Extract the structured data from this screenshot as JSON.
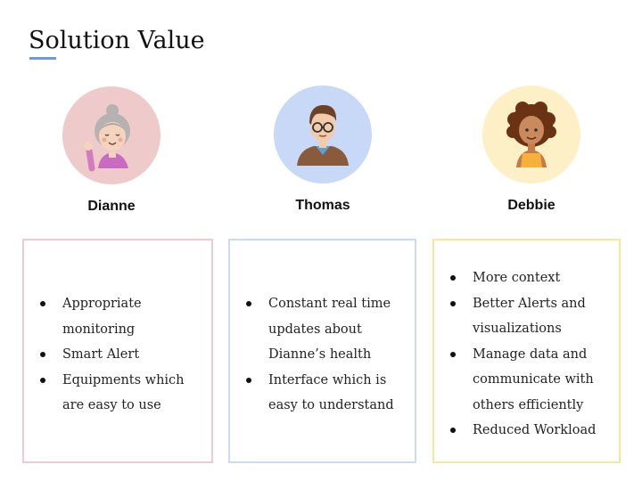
{
  "slide": {
    "title": "Solution Value",
    "accent_color": "#6d9ae6"
  },
  "personas": [
    {
      "name": "Dianne",
      "icon": "grandmother-avatar-icon",
      "circle_color": "#eecaca",
      "box_border_color": "#f3c9d1",
      "benefits": [
        "Appropriate monitoring",
        "Smart Alert",
        "Equipments which are easy to use"
      ]
    },
    {
      "name": "Thomas",
      "icon": "man-with-glasses-avatar-icon",
      "circle_color": "#c8d8f7",
      "box_border_color": "#cbdcef",
      "benefits": [
        "Constant real time updates about Dianne’s health",
        "Interface which is easy to understand"
      ]
    },
    {
      "name": "Debbie",
      "icon": "woman-curly-hair-avatar-icon",
      "circle_color": "#fdf0c6",
      "box_border_color": "#f7e79d",
      "benefits": [
        "More context",
        "Better Alerts and visualizations",
        "Manage data and communicate with others efficiently",
        "Reduced Workload"
      ]
    }
  ]
}
